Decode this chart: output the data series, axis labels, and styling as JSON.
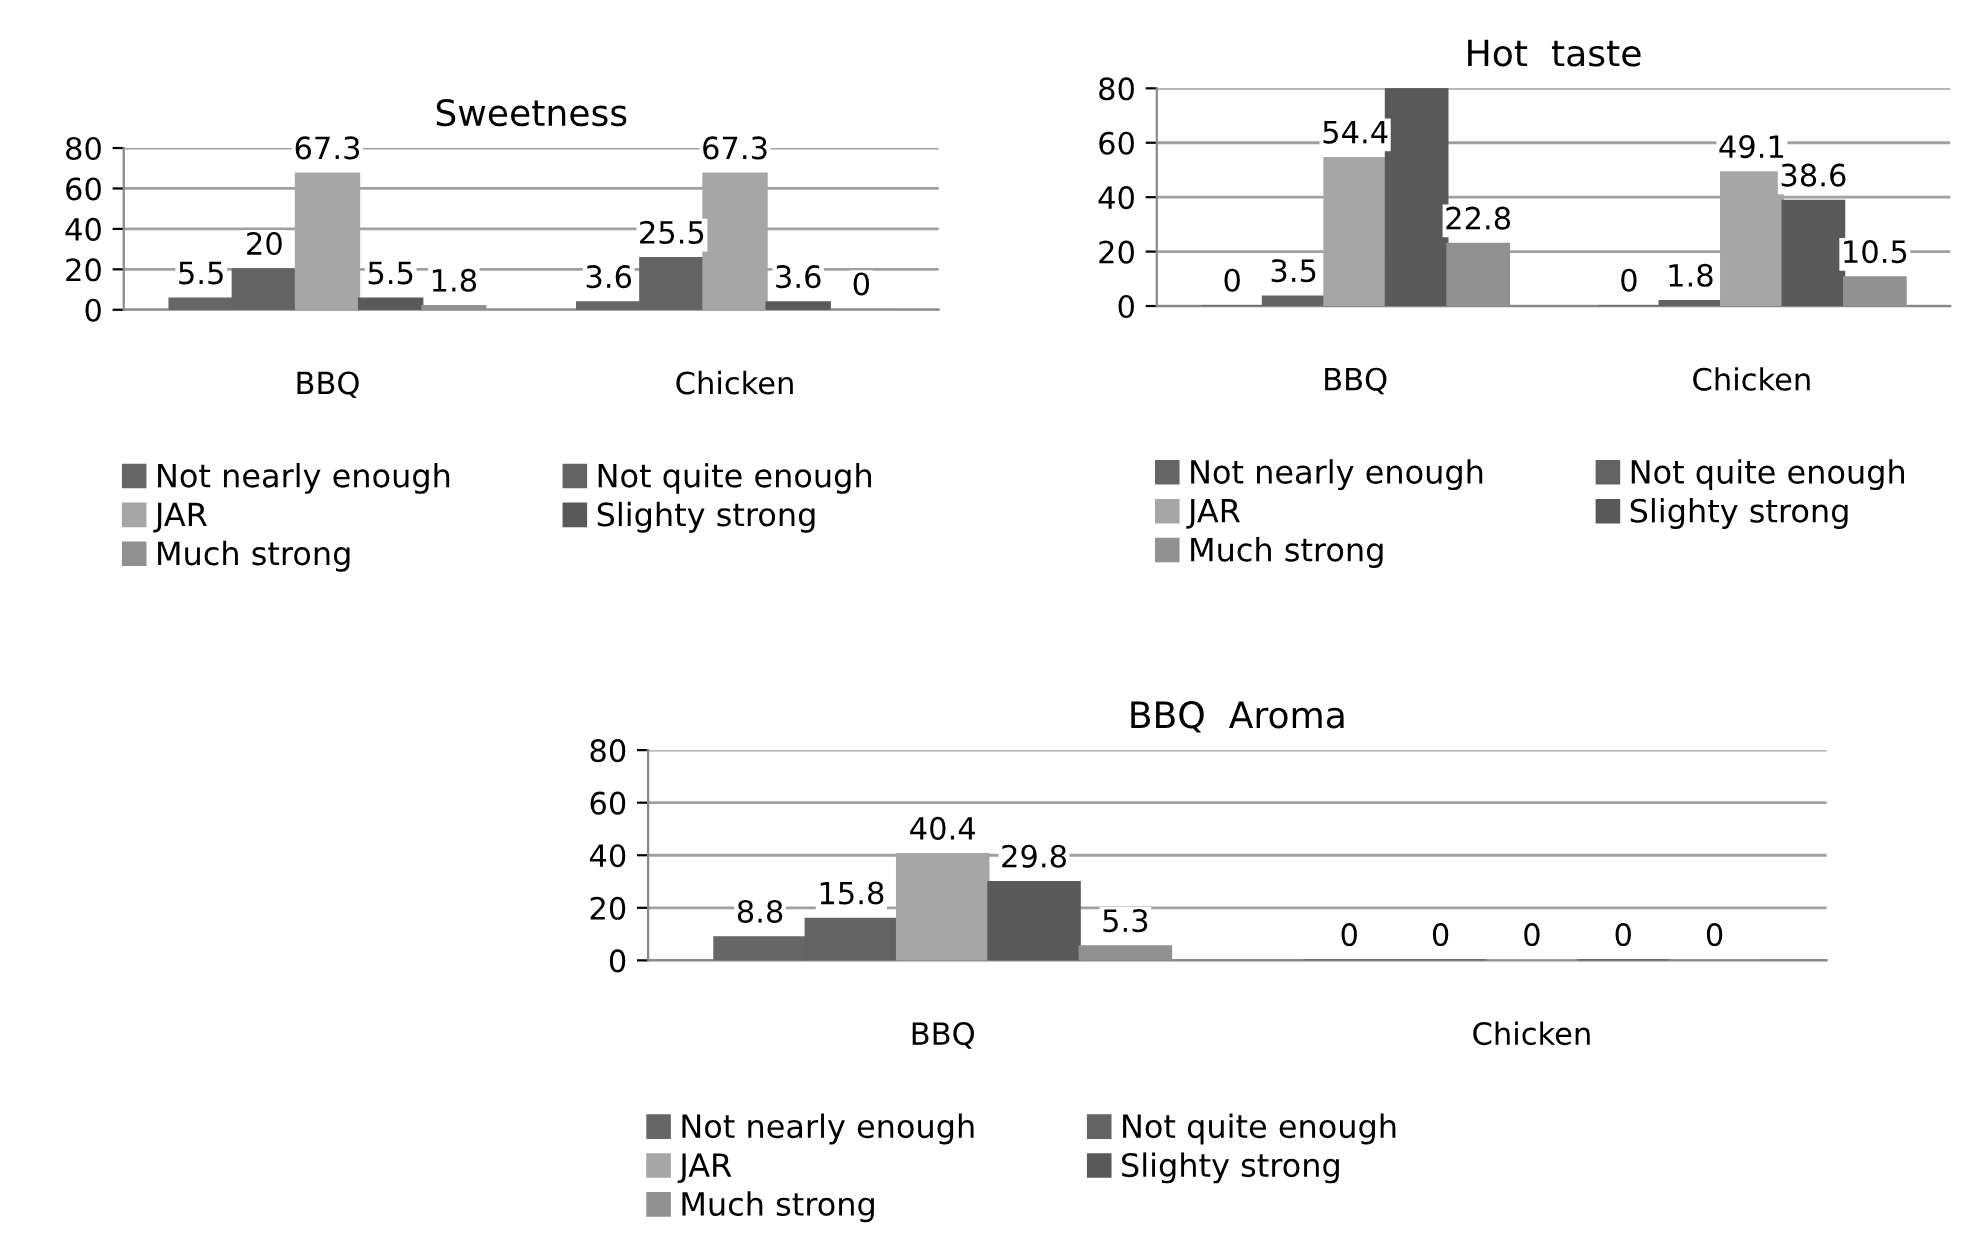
{
  "chart_data": [
    {
      "type": "bar",
      "title": "Sweetness",
      "categories": [
        "BBQ",
        "Chicken"
      ],
      "ylim": [
        0,
        80
      ],
      "yticks": [
        0,
        20,
        40,
        60,
        80
      ],
      "grid": "y",
      "legend": "bottom",
      "series": [
        {
          "name": "Not nearly enough",
          "color": "#666666",
          "values": [
            5.5,
            3.6
          ],
          "value_labels": [
            "5.5",
            "3.6"
          ]
        },
        {
          "name": "Not quite enough",
          "color": "#636363",
          "values": [
            20,
            25.5
          ],
          "value_labels": [
            "20",
            "25.5"
          ]
        },
        {
          "name": "JAR",
          "color": "#a6a6a6",
          "values": [
            67.3,
            67.3
          ],
          "value_labels": [
            "67.3",
            "67.3"
          ]
        },
        {
          "name": "Slighty strong",
          "color": "#595959",
          "values": [
            5.5,
            3.6
          ],
          "value_labels": [
            "5.5",
            "3.6"
          ]
        },
        {
          "name": "Much strong",
          "color": "#919191",
          "values": [
            1.8,
            0
          ],
          "value_labels": [
            "1.8",
            "0"
          ]
        }
      ]
    },
    {
      "type": "bar",
      "title": "Hot  taste",
      "categories": [
        "BBQ",
        "Chicken"
      ],
      "ylim": [
        0,
        80
      ],
      "yticks": [
        0,
        20,
        40,
        60,
        80
      ],
      "grid": "y",
      "legend": "bottom",
      "series": [
        {
          "name": "Not nearly enough",
          "color": "#666666",
          "values": [
            0,
            0
          ],
          "value_labels": [
            "0",
            "0"
          ]
        },
        {
          "name": "Not quite enough",
          "color": "#636363",
          "values": [
            3.5,
            1.8
          ],
          "value_labels": [
            "3.5",
            "1.8"
          ]
        },
        {
          "name": "JAR",
          "color": "#a6a6a6",
          "values": [
            54.4,
            49.1
          ],
          "value_labels": [
            "54.4",
            "49.1"
          ]
        },
        {
          "name": "Slighty strong",
          "color": "#595959",
          "values": [
            80,
            38.6
          ],
          "value_labels": [
            null,
            "38.6"
          ]
        },
        {
          "name": "Much strong",
          "color": "#919191",
          "values": [
            22.8,
            10.5
          ],
          "value_labels": [
            "22.8",
            "10.5"
          ]
        }
      ]
    },
    {
      "type": "bar",
      "title": "BBQ  Aroma",
      "categories": [
        "BBQ",
        "Chicken"
      ],
      "ylim": [
        0,
        80
      ],
      "yticks": [
        0,
        20,
        40,
        60,
        80
      ],
      "grid": "y",
      "legend": "bottom",
      "series": [
        {
          "name": "Not nearly enough",
          "color": "#666666",
          "values": [
            8.8,
            0
          ],
          "value_labels": [
            "8.8",
            "0"
          ]
        },
        {
          "name": "Not quite enough",
          "color": "#636363",
          "values": [
            15.8,
            0
          ],
          "value_labels": [
            "15.8",
            "0"
          ]
        },
        {
          "name": "JAR",
          "color": "#a6a6a6",
          "values": [
            40.4,
            0
          ],
          "value_labels": [
            "40.4",
            "0"
          ]
        },
        {
          "name": "Slighty strong",
          "color": "#595959",
          "values": [
            29.8,
            0
          ],
          "value_labels": [
            "29.8",
            "0"
          ]
        },
        {
          "name": "Much strong",
          "color": "#919191",
          "values": [
            5.3,
            0
          ],
          "value_labels": [
            "5.3",
            "0"
          ]
        }
      ]
    }
  ]
}
